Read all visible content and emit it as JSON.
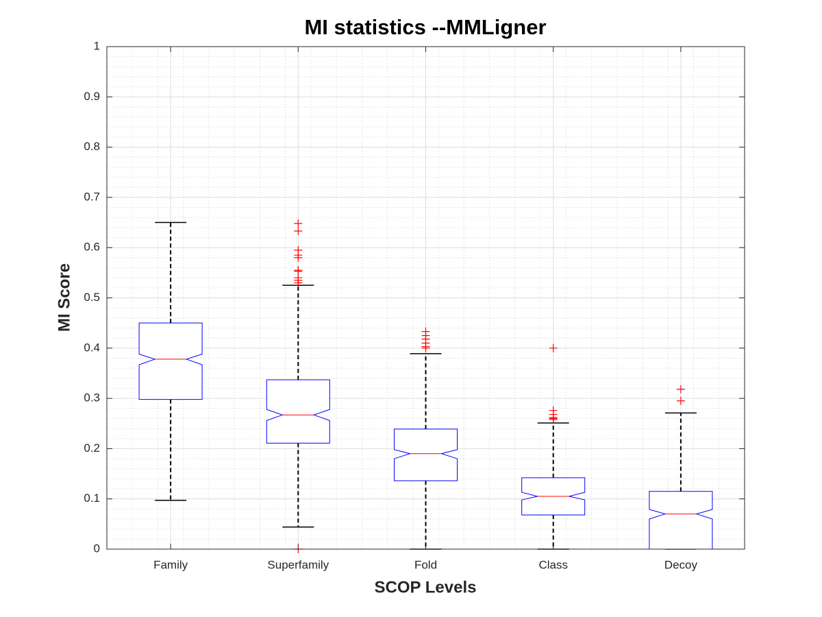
{
  "chart_data": {
    "type": "box",
    "title": "MI statistics --MMLigner",
    "xlabel": "SCOP Levels",
    "ylabel": "MI Score",
    "categories": [
      "Family",
      "Superfamily",
      "Fold",
      "Class",
      "Decoy"
    ],
    "boxes": [
      {
        "whisker_low": 0.097,
        "q1": 0.298,
        "notch_low": 0.367,
        "median": 0.378,
        "notch_high": 0.388,
        "q3": 0.45,
        "whisker_high": 0.65,
        "outliers": []
      },
      {
        "whisker_low": 0.044,
        "q1": 0.211,
        "notch_low": 0.256,
        "median": 0.267,
        "notch_high": 0.278,
        "q3": 0.337,
        "whisker_high": 0.525,
        "outliers": [
          0.648,
          0.633,
          0.595,
          0.585,
          0.58,
          0.555,
          0.553,
          0.54,
          0.535,
          0.53,
          0
        ]
      },
      {
        "whisker_low": 0,
        "q1": 0.136,
        "notch_low": 0.18,
        "median": 0.19,
        "notch_high": 0.198,
        "q3": 0.239,
        "whisker_high": 0.389,
        "outliers": [
          0.433,
          0.425,
          0.418,
          0.41,
          0.403,
          0.4
        ]
      },
      {
        "whisker_low": 0,
        "q1": 0.068,
        "notch_low": 0.098,
        "median": 0.105,
        "notch_high": 0.113,
        "q3": 0.142,
        "whisker_high": 0.251,
        "outliers": [
          0.4,
          0.276,
          0.268,
          0.262,
          0.26,
          0.258
        ]
      },
      {
        "whisker_low": 0,
        "q1": 0,
        "notch_low": 0.06,
        "median": 0.07,
        "notch_high": 0.079,
        "q3": 0.115,
        "whisker_high": 0.271,
        "outliers": [
          0.318,
          0.295
        ]
      }
    ],
    "box_color": "#0000ff",
    "median_color": "#ff0000",
    "whisker_color": "#000000",
    "outlier_color": "#ff0000",
    "xlim": [
      0.5,
      5.5
    ],
    "ylim": [
      0,
      1
    ],
    "yticks": [
      0,
      0.1,
      0.2,
      0.3,
      0.4,
      0.5,
      0.6,
      0.7,
      0.8,
      0.9,
      1
    ],
    "grid": true,
    "minor_grid": true
  }
}
